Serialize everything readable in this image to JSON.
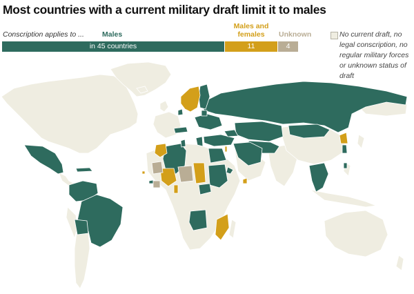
{
  "title": "Most countries with a current military draft limit it to males",
  "legend": {
    "caption": "Conscription applies to ...",
    "categories": [
      {
        "key": "males",
        "label": "Males",
        "count_text": "in 45 countries",
        "count": 45,
        "color": "#2e6b5e"
      },
      {
        "key": "both",
        "label": "Males and females",
        "count_text": "11",
        "count": 11,
        "color": "#d39f1a"
      },
      {
        "key": "unknown",
        "label": "Unknown",
        "count_text": "4",
        "count": 4,
        "color": "#b9ad95"
      }
    ],
    "no_draft": {
      "label": "No current draft, no legal conscription, no regular military forces or unknown status of draft",
      "color": "#efede1"
    }
  },
  "map": {
    "ocean_color": "#ffffff",
    "border_color": "#ffffff",
    "categories": {
      "males": [
        "Mexico",
        "Colombia",
        "Venezuela",
        "Brazil",
        "Bolivia",
        "Cuba",
        "Algeria",
        "Egypt",
        "Sudan",
        "Angola",
        "Russia",
        "Turkey",
        "Iran",
        "Syria",
        "Kazakhstan",
        "Ukraine",
        "Belarus",
        "Greece",
        "Austria",
        "Switzerland",
        "Thailand",
        "Vietnam",
        "South Korea",
        "Denmark",
        "Finland",
        "Estonia",
        "Lithuania",
        "Georgia",
        "Armenia",
        "Azerbaijan",
        "Turkmenistan",
        "Uzbekistan",
        "Mongolia",
        "Cyprus",
        "Singapore",
        "Taiwan",
        "Eritrea",
        "Central African Republic",
        "Tunisia",
        "Guinea-Bissau",
        "Brunei",
        "Moldova",
        "Kyrgyzstan",
        "Tajikistan",
        "Laos"
      ],
      "both": [
        "Norway",
        "Sweden",
        "Mali",
        "Chad",
        "Mozambique",
        "Morocco",
        "North Korea",
        "Israel",
        "Benin",
        "Cape Verde",
        "Eritrea region"
      ],
      "unknown": [
        "Niger",
        "Mauritania",
        "Guinea",
        "Sierra Leone"
      ]
    }
  }
}
